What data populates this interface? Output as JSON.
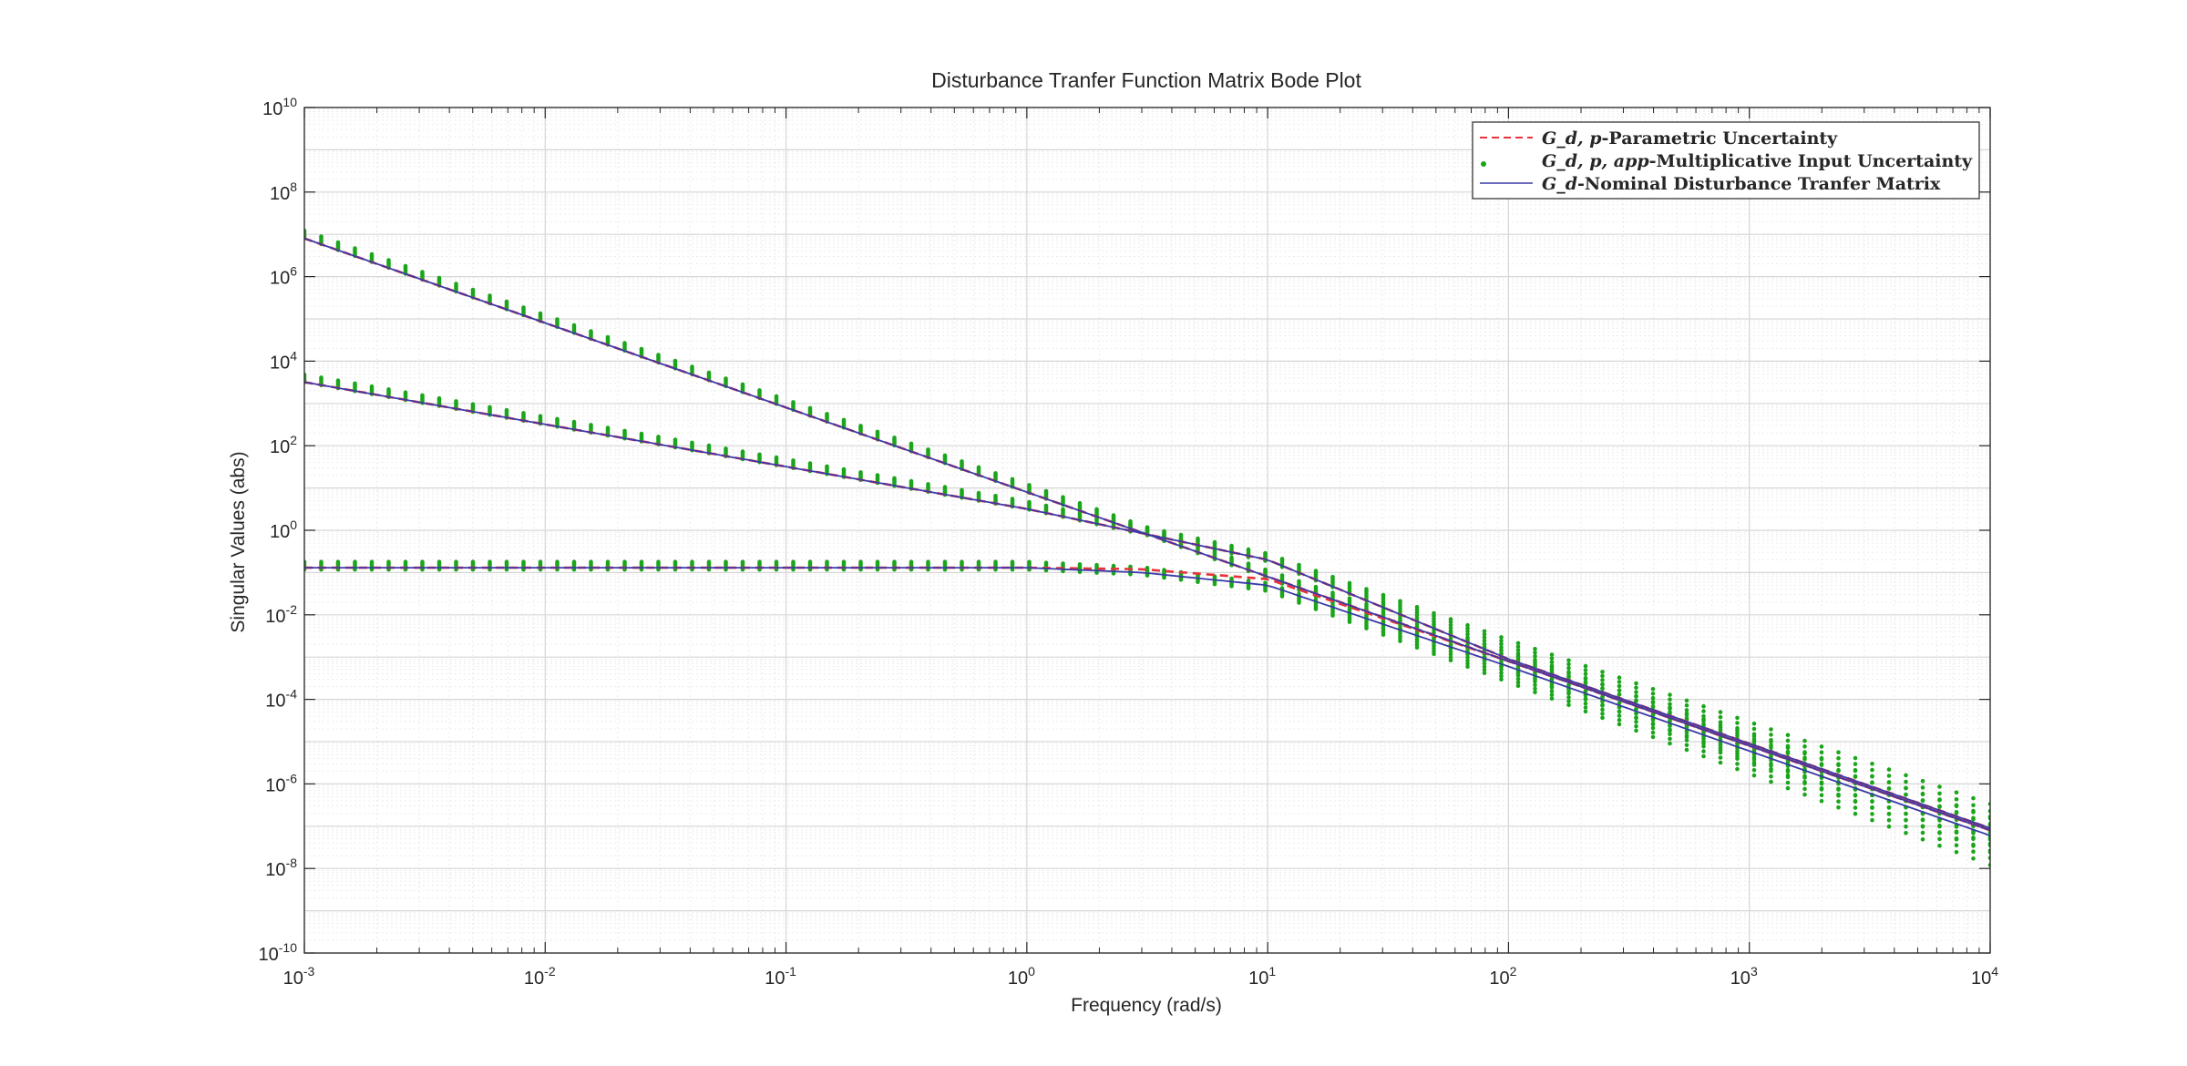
{
  "chart_data": {
    "type": "line",
    "title": "Disturbance Tranfer Function Matrix Bode Plot",
    "xlabel": "Frequency (rad/s)",
    "ylabel": "Singular Values (abs)",
    "xscale": "log",
    "yscale": "log",
    "xlim": [
      0.001,
      10000
    ],
    "ylim": [
      1e-10,
      10000000000.0
    ],
    "grid": true,
    "minor_grid": true,
    "legend_position": "top-right",
    "x_ticks": [
      {
        "base": "10",
        "exp": "-3"
      },
      {
        "base": "10",
        "exp": "-2"
      },
      {
        "base": "10",
        "exp": "-1"
      },
      {
        "base": "10",
        "exp": "0"
      },
      {
        "base": "10",
        "exp": "1"
      },
      {
        "base": "10",
        "exp": "2"
      },
      {
        "base": "10",
        "exp": "3"
      },
      {
        "base": "10",
        "exp": "4"
      }
    ],
    "y_ticks": [
      {
        "base": "10",
        "exp": "-10"
      },
      {
        "base": "10",
        "exp": "-8"
      },
      {
        "base": "10",
        "exp": "-6"
      },
      {
        "base": "10",
        "exp": "-4"
      },
      {
        "base": "10",
        "exp": "-2"
      },
      {
        "base": "10",
        "exp": "0"
      },
      {
        "base": "10",
        "exp": "2"
      },
      {
        "base": "10",
        "exp": "4"
      },
      {
        "base": "10",
        "exp": "6"
      },
      {
        "base": "10",
        "exp": "8"
      },
      {
        "base": "10",
        "exp": "10"
      }
    ],
    "series": [
      {
        "name": "G_d,p-Parametric Uncertainty",
        "legend_math": "G_d, p",
        "legend_text": "-Parametric Uncertainty",
        "style": "dashed",
        "color": "#e8323c",
        "curves": [
          {
            "x": [
              0.001,
              0.01,
              0.1,
              1,
              10,
              100,
              1000,
              10000
            ],
            "y": [
              8000000.0,
              80000.0,
              800,
              8,
              0.08,
              0.0008,
              8e-06,
              8e-08
            ]
          },
          {
            "x": [
              0.001,
              0.01,
              0.1,
              1,
              10,
              100,
              1000,
              10000
            ],
            "y": [
              3200,
              320,
              32,
              3.2,
              0.2,
              0.0009,
              9e-06,
              9e-08
            ]
          },
          {
            "x": [
              0.001,
              0.01,
              0.1,
              1,
              3,
              10,
              100,
              1000,
              10000
            ],
            "y": [
              0.13,
              0.13,
              0.13,
              0.13,
              0.12,
              0.07,
              0.0008,
              8e-06,
              8e-08
            ]
          }
        ]
      },
      {
        "name": "G_d,p,app-Multiplicative Input Uncertainty",
        "legend_math": "G_d, p, app",
        "legend_text": "-Multiplicative Input Uncertainty",
        "style": "dots",
        "color": "#1aa51a",
        "curves": [
          {
            "x": [
              0.001,
              0.01,
              0.1,
              1,
              10,
              100,
              1000,
              10000
            ],
            "y": [
              11000000.0,
              110000.0,
              1100,
              11,
              0.1,
              0.001,
              1e-05,
              1e-07
            ]
          },
          {
            "x": [
              0.001,
              0.01,
              0.1,
              1,
              10,
              100,
              1000,
              10000
            ],
            "y": [
              4300,
              430,
              43,
              4.3,
              0.25,
              0.002,
              2e-05,
              2e-07
            ]
          },
          {
            "x": [
              0.001,
              0.01,
              0.1,
              1,
              3,
              10,
              100,
              1000,
              10000
            ],
            "y": [
              0.16,
              0.16,
              0.16,
              0.16,
              0.12,
              0.05,
              0.0005,
              5e-06,
              5e-08
            ]
          }
        ]
      },
      {
        "name": "G_d-Nominal Disturbance Tranfer Matrix",
        "legend_math": "G_d",
        "legend_text": "-Nominal Disturbance Tranfer Matrix",
        "style": "solid",
        "color": "#3a3aa8",
        "curves": [
          {
            "x": [
              0.001,
              0.01,
              0.1,
              1,
              10,
              100,
              1000,
              10000
            ],
            "y": [
              8000000.0,
              80000.0,
              800,
              8,
              0.08,
              0.0008,
              8e-06,
              8e-08
            ]
          },
          {
            "x": [
              0.001,
              0.01,
              0.1,
              1,
              10,
              100,
              1000,
              10000
            ],
            "y": [
              3200,
              320,
              32,
              3.2,
              0.2,
              0.0009,
              9e-06,
              9e-08
            ]
          },
          {
            "x": [
              0.001,
              0.01,
              0.1,
              1,
              3,
              10,
              100,
              1000,
              10000
            ],
            "y": [
              0.13,
              0.13,
              0.13,
              0.13,
              0.1,
              0.05,
              0.0006,
              6e-06,
              6e-08
            ]
          }
        ]
      }
    ]
  }
}
